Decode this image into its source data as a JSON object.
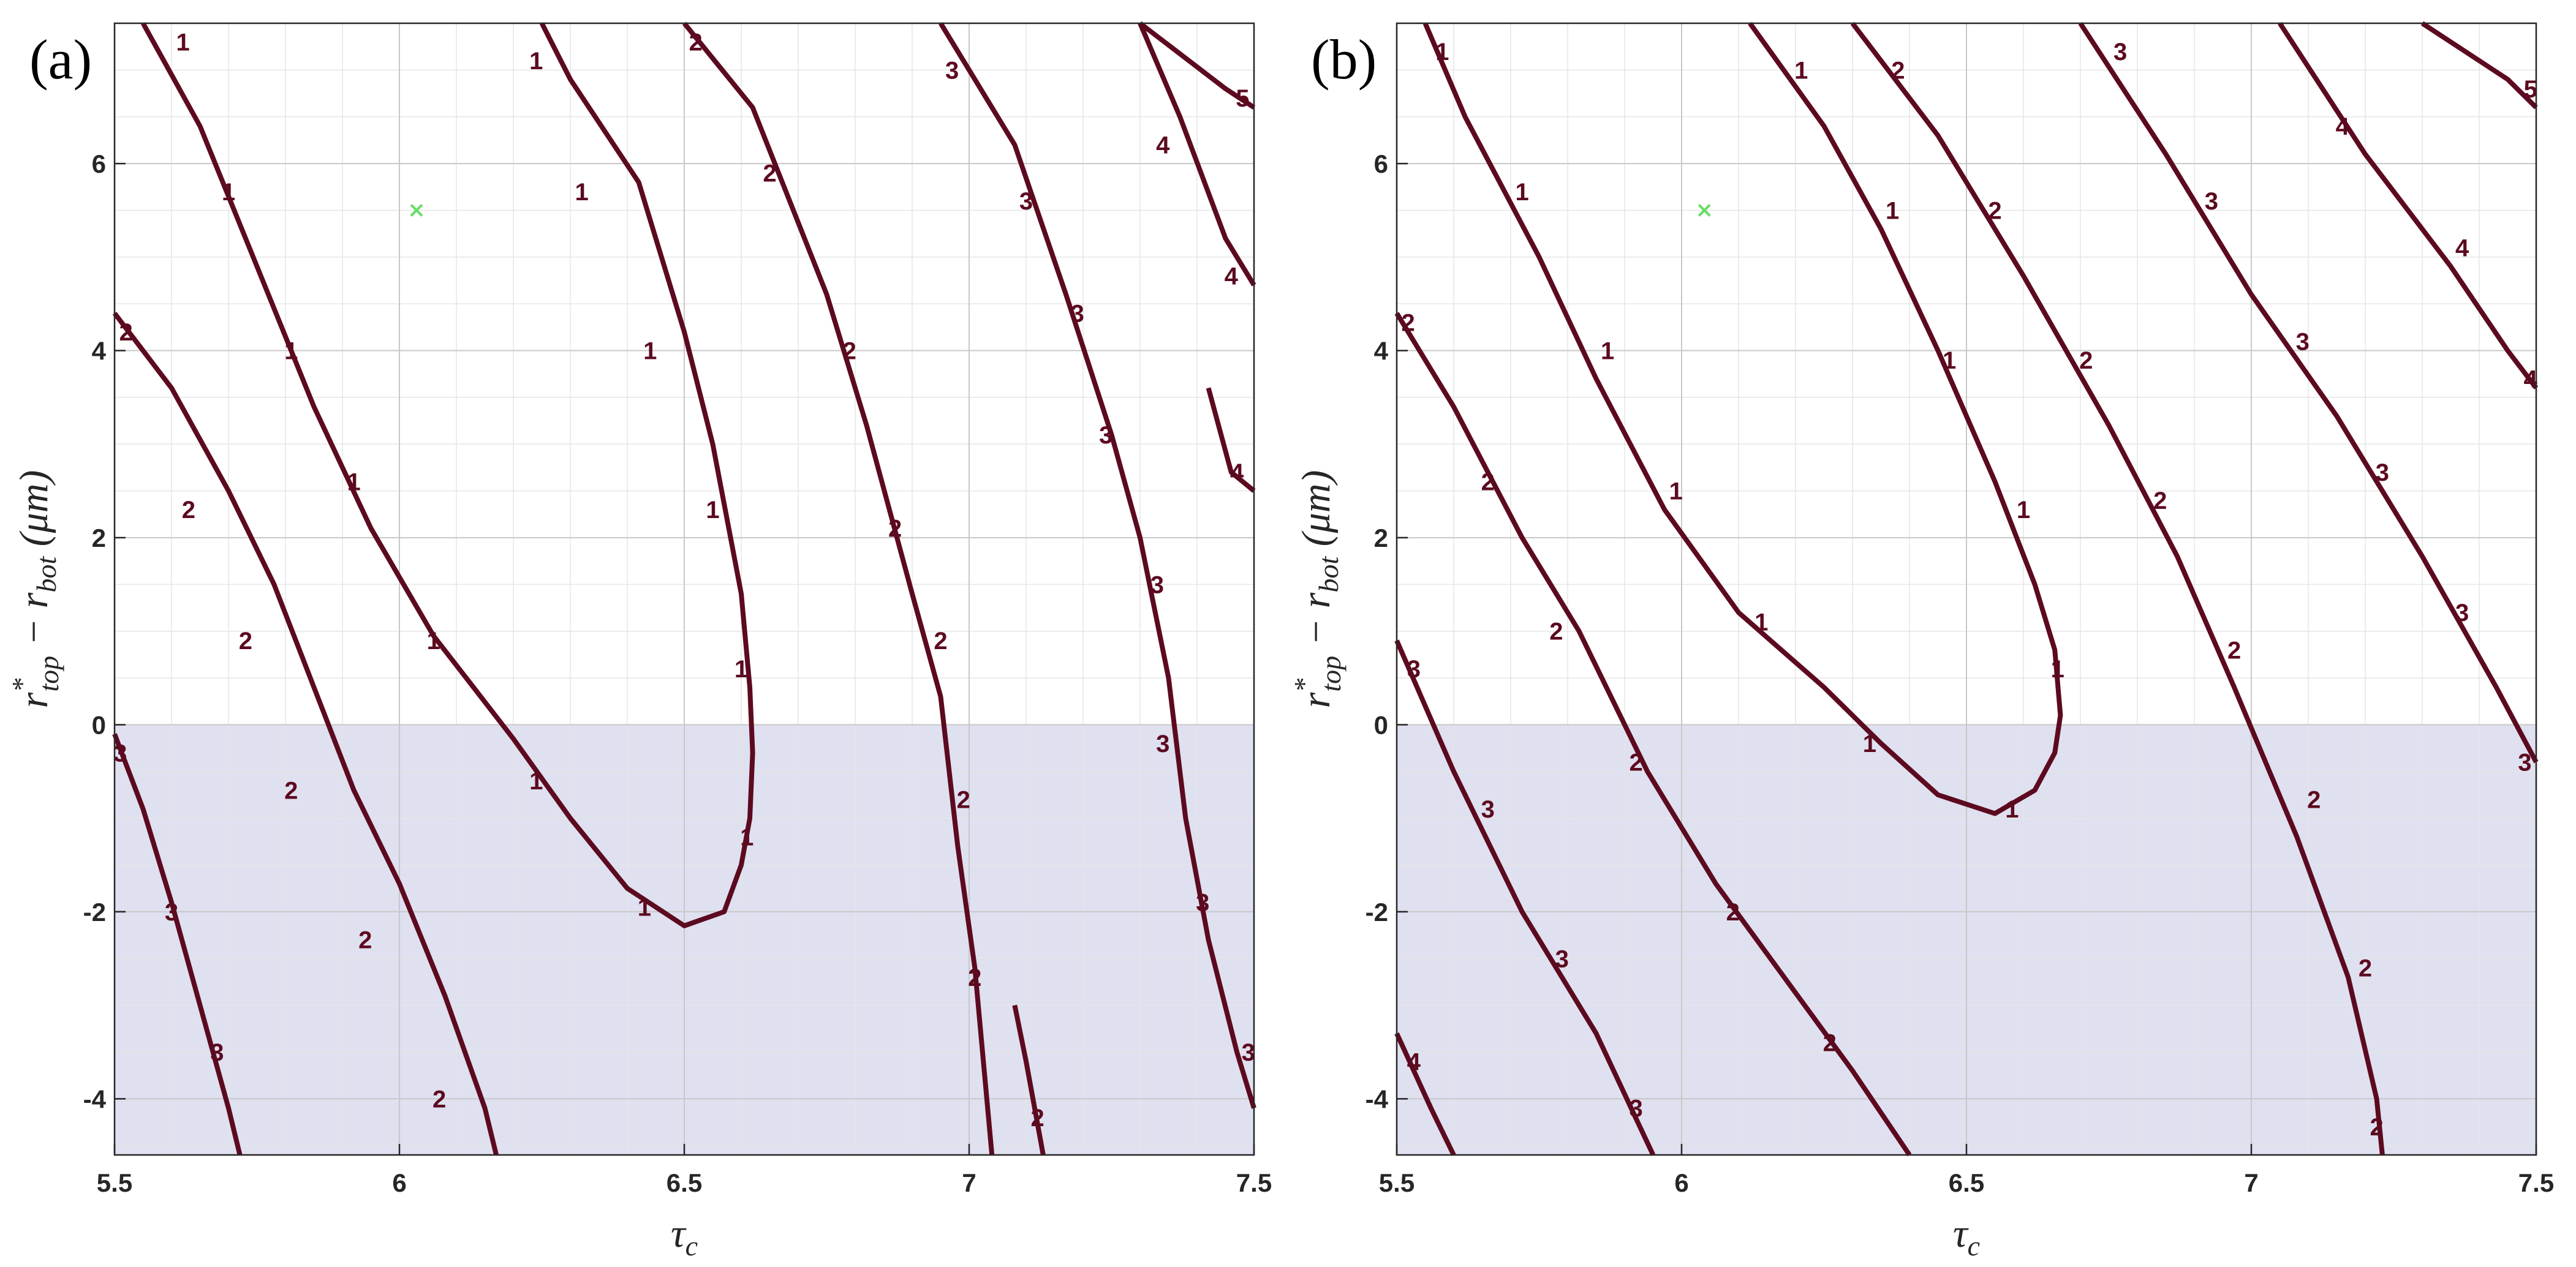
{
  "chart_data": [
    {
      "type": "contour",
      "panel_label": "(a)",
      "xlabel": "τc",
      "ylabel": "r*top − rbot (μm)",
      "xlim": [
        5.5,
        7.5
      ],
      "ylim": [
        -4.6,
        7.5
      ],
      "xticks": [
        5.5,
        6,
        6.5,
        7,
        7.5
      ],
      "yticks": [
        -4,
        -2,
        0,
        2,
        4,
        6
      ],
      "grid": true,
      "shaded_region": {
        "y_from": -4.6,
        "y_to": 0,
        "color": "#dfe0f0"
      },
      "marker": {
        "x": 6.03,
        "y": 5.5,
        "symbol": "x",
        "color": "#66dd66"
      },
      "line_color": "#5c0a1f",
      "contours": [
        {
          "level": 2,
          "points": [
            [
              5.5,
              4.4
            ],
            [
              5.6,
              3.6
            ],
            [
              5.7,
              2.5
            ],
            [
              5.78,
              1.5
            ],
            [
              5.85,
              0.4
            ],
            [
              5.92,
              -0.7
            ],
            [
              6.0,
              -1.7
            ],
            [
              6.08,
              -2.9
            ],
            [
              6.15,
              -4.1
            ],
            [
              6.17,
              -4.6
            ]
          ],
          "labels": [
            [
              5.52,
              4.2
            ],
            [
              5.63,
              2.3
            ],
            [
              5.73,
              0.9
            ],
            [
              5.81,
              -0.7
            ],
            [
              5.94,
              -2.3
            ],
            [
              6.07,
              -4.0
            ]
          ]
        },
        {
          "level": 3,
          "points": [
            [
              5.5,
              -0.1
            ],
            [
              5.55,
              -0.9
            ],
            [
              5.6,
              -1.9
            ],
            [
              5.65,
              -3.0
            ],
            [
              5.7,
              -4.1
            ],
            [
              5.72,
              -4.6
            ]
          ],
          "labels": [
            [
              5.51,
              -0.3
            ],
            [
              5.6,
              -2.0
            ],
            [
              5.68,
              -3.5
            ]
          ]
        },
        {
          "level": 1,
          "points": [
            [
              5.55,
              7.5
            ],
            [
              5.65,
              6.4
            ],
            [
              5.75,
              4.9
            ],
            [
              5.85,
              3.4
            ],
            [
              5.95,
              2.1
            ],
            [
              6.06,
              0.95
            ],
            [
              6.2,
              -0.15
            ],
            [
              6.3,
              -1.0
            ],
            [
              6.4,
              -1.75
            ],
            [
              6.5,
              -2.15
            ],
            [
              6.57,
              -2.0
            ],
            [
              6.6,
              -1.5
            ],
            [
              6.615,
              -1.0
            ],
            [
              6.62,
              -0.3
            ],
            [
              6.615,
              0.4
            ],
            [
              6.6,
              1.4
            ],
            [
              6.55,
              3.0
            ],
            [
              6.5,
              4.2
            ],
            [
              6.42,
              5.8
            ],
            [
              6.3,
              6.9
            ],
            [
              6.25,
              7.5
            ]
          ],
          "labels": [
            [
              5.62,
              7.3
            ],
            [
              5.7,
              5.7
            ],
            [
              5.81,
              4.0
            ],
            [
              5.92,
              2.6
            ],
            [
              6.06,
              0.9
            ],
            [
              6.24,
              -0.6
            ],
            [
              6.43,
              -1.95
            ],
            [
              6.61,
              -1.2
            ],
            [
              6.6,
              0.6
            ],
            [
              6.55,
              2.3
            ],
            [
              6.44,
              4.0
            ],
            [
              6.32,
              5.7
            ],
            [
              6.24,
              7.1
            ]
          ]
        },
        {
          "level": 2,
          "points": [
            [
              6.5,
              7.5
            ],
            [
              6.62,
              6.6
            ],
            [
              6.75,
              4.6
            ],
            [
              6.82,
              3.2
            ],
            [
              6.9,
              1.4
            ],
            [
              6.95,
              0.3
            ],
            [
              6.98,
              -1.3
            ],
            [
              7.01,
              -2.6
            ],
            [
              7.04,
              -4.6
            ]
          ],
          "labels": [
            [
              6.52,
              7.3
            ],
            [
              6.65,
              5.9
            ],
            [
              6.79,
              4.0
            ],
            [
              6.87,
              2.1
            ],
            [
              6.95,
              0.9
            ],
            [
              6.99,
              -0.8
            ],
            [
              7.01,
              -2.7
            ]
          ]
        },
        {
          "level": 2,
          "points": [
            [
              7.08,
              -3.0
            ],
            [
              7.1,
              -3.6
            ],
            [
              7.13,
              -4.6
            ]
          ],
          "labels": [
            [
              7.12,
              -4.2
            ]
          ]
        },
        {
          "level": 3,
          "points": [
            [
              6.95,
              7.5
            ],
            [
              7.08,
              6.2
            ],
            [
              7.17,
              4.6
            ],
            [
              7.25,
              3.1
            ],
            [
              7.3,
              2.0
            ],
            [
              7.35,
              0.5
            ],
            [
              7.38,
              -1.0
            ],
            [
              7.42,
              -2.3
            ],
            [
              7.47,
              -3.5
            ],
            [
              7.5,
              -4.1
            ]
          ],
          "labels": [
            [
              6.97,
              7.0
            ],
            [
              7.1,
              5.6
            ],
            [
              7.19,
              4.4
            ],
            [
              7.24,
              3.1
            ],
            [
              7.33,
              1.5
            ],
            [
              7.34,
              -0.2
            ],
            [
              7.41,
              -1.9
            ],
            [
              7.49,
              -3.5
            ]
          ]
        },
        {
          "level": 4,
          "points": [
            [
              7.3,
              7.5
            ],
            [
              7.37,
              6.5
            ],
            [
              7.45,
              5.2
            ],
            [
              7.5,
              4.7
            ]
          ],
          "labels": [
            [
              7.34,
              6.2
            ],
            [
              7.46,
              4.8
            ]
          ]
        },
        {
          "level": 4,
          "points": [
            [
              7.42,
              3.6
            ],
            [
              7.46,
              2.7
            ],
            [
              7.5,
              2.5
            ]
          ],
          "labels": [
            [
              7.47,
              2.7
            ]
          ]
        },
        {
          "level": 5,
          "points": [
            [
              7.3,
              7.5
            ],
            [
              7.45,
              6.8
            ],
            [
              7.5,
              6.6
            ]
          ],
          "labels": [
            [
              7.48,
              6.7
            ]
          ]
        }
      ]
    },
    {
      "type": "contour",
      "panel_label": "(b)",
      "xlabel": "τc",
      "ylabel": "r*top − rbot (μm)",
      "xlim": [
        5.5,
        7.5
      ],
      "ylim": [
        -4.6,
        7.5
      ],
      "xticks": [
        5.5,
        6,
        6.5,
        7,
        7.5
      ],
      "yticks": [
        -4,
        -2,
        0,
        2,
        4,
        6
      ],
      "grid": true,
      "shaded_region": {
        "y_from": -4.6,
        "y_to": 0,
        "color": "#dfe0f0"
      },
      "marker": {
        "x": 6.04,
        "y": 5.5,
        "symbol": "x",
        "color": "#66dd66"
      },
      "line_color": "#5c0a1f",
      "contours": [
        {
          "level": 2,
          "points": [
            [
              5.5,
              4.4
            ],
            [
              5.6,
              3.4
            ],
            [
              5.72,
              2.0
            ],
            [
              5.82,
              1.0
            ],
            [
              5.94,
              -0.5
            ],
            [
              6.06,
              -1.7
            ],
            [
              6.18,
              -2.7
            ],
            [
              6.3,
              -3.7
            ],
            [
              6.4,
              -4.6
            ]
          ],
          "labels": [
            [
              5.52,
              4.3
            ],
            [
              5.66,
              2.6
            ],
            [
              5.78,
              1.0
            ],
            [
              5.92,
              -0.4
            ],
            [
              6.09,
              -2.0
            ],
            [
              6.26,
              -3.4
            ]
          ]
        },
        {
          "level": 3,
          "points": [
            [
              5.5,
              0.9
            ],
            [
              5.6,
              -0.5
            ],
            [
              5.72,
              -2.0
            ],
            [
              5.85,
              -3.3
            ],
            [
              5.95,
              -4.6
            ]
          ],
          "labels": [
            [
              5.53,
              0.6
            ],
            [
              5.66,
              -0.9
            ],
            [
              5.79,
              -2.5
            ],
            [
              5.92,
              -4.1
            ]
          ]
        },
        {
          "level": 4,
          "points": [
            [
              5.5,
              -3.3
            ],
            [
              5.56,
              -4.1
            ],
            [
              5.6,
              -4.6
            ]
          ],
          "labels": [
            [
              5.53,
              -3.6
            ]
          ]
        },
        {
          "level": 1,
          "points": [
            [
              5.55,
              7.5
            ],
            [
              5.62,
              6.5
            ],
            [
              5.75,
              5.0
            ],
            [
              5.85,
              3.7
            ],
            [
              5.97,
              2.3
            ],
            [
              6.1,
              1.2
            ],
            [
              6.25,
              0.4
            ],
            [
              6.35,
              -0.2
            ],
            [
              6.45,
              -0.75
            ],
            [
              6.55,
              -0.95
            ],
            [
              6.62,
              -0.7
            ],
            [
              6.655,
              -0.3
            ],
            [
              6.665,
              0.1
            ],
            [
              6.655,
              0.8
            ],
            [
              6.62,
              1.5
            ],
            [
              6.55,
              2.6
            ],
            [
              6.45,
              4.0
            ],
            [
              6.35,
              5.3
            ],
            [
              6.25,
              6.4
            ],
            [
              6.12,
              7.5
            ]
          ],
          "labels": [
            [
              5.58,
              7.2
            ],
            [
              5.72,
              5.7
            ],
            [
              5.87,
              4.0
            ],
            [
              5.99,
              2.5
            ],
            [
              6.14,
              1.1
            ],
            [
              6.33,
              -0.2
            ],
            [
              6.58,
              -0.9
            ],
            [
              6.66,
              0.6
            ],
            [
              6.6,
              2.3
            ],
            [
              6.47,
              3.9
            ],
            [
              6.37,
              5.5
            ],
            [
              6.21,
              7.0
            ]
          ]
        },
        {
          "level": 2,
          "points": [
            [
              6.3,
              7.5
            ],
            [
              6.45,
              6.3
            ],
            [
              6.6,
              4.8
            ],
            [
              6.75,
              3.2
            ],
            [
              6.87,
              1.8
            ],
            [
              6.97,
              0.4
            ],
            [
              7.08,
              -1.2
            ],
            [
              7.17,
              -2.7
            ],
            [
              7.22,
              -4.0
            ],
            [
              7.23,
              -4.6
            ]
          ],
          "labels": [
            [
              6.38,
              7.0
            ],
            [
              6.55,
              5.5
            ],
            [
              6.71,
              3.9
            ],
            [
              6.84,
              2.4
            ],
            [
              6.97,
              0.8
            ],
            [
              7.11,
              -0.8
            ],
            [
              7.2,
              -2.6
            ],
            [
              7.22,
              -4.3
            ]
          ]
        },
        {
          "level": 3,
          "points": [
            [
              6.7,
              7.5
            ],
            [
              6.85,
              6.1
            ],
            [
              7.0,
              4.6
            ],
            [
              7.15,
              3.3
            ],
            [
              7.3,
              1.8
            ],
            [
              7.43,
              0.4
            ],
            [
              7.5,
              -0.4
            ]
          ],
          "labels": [
            [
              6.77,
              7.2
            ],
            [
              6.93,
              5.6
            ],
            [
              7.09,
              4.1
            ],
            [
              7.23,
              2.7
            ],
            [
              7.37,
              1.2
            ],
            [
              7.48,
              -0.4
            ]
          ]
        },
        {
          "level": 4,
          "points": [
            [
              7.05,
              7.5
            ],
            [
              7.2,
              6.1
            ],
            [
              7.35,
              4.9
            ],
            [
              7.45,
              4.0
            ],
            [
              7.5,
              3.6
            ]
          ],
          "labels": [
            [
              7.16,
              6.4
            ],
            [
              7.37,
              5.1
            ],
            [
              7.49,
              3.7
            ]
          ]
        },
        {
          "level": 5,
          "points": [
            [
              7.3,
              7.5
            ],
            [
              7.45,
              6.9
            ],
            [
              7.5,
              6.6
            ]
          ],
          "labels": [
            [
              7.49,
              6.8
            ]
          ]
        }
      ]
    }
  ]
}
